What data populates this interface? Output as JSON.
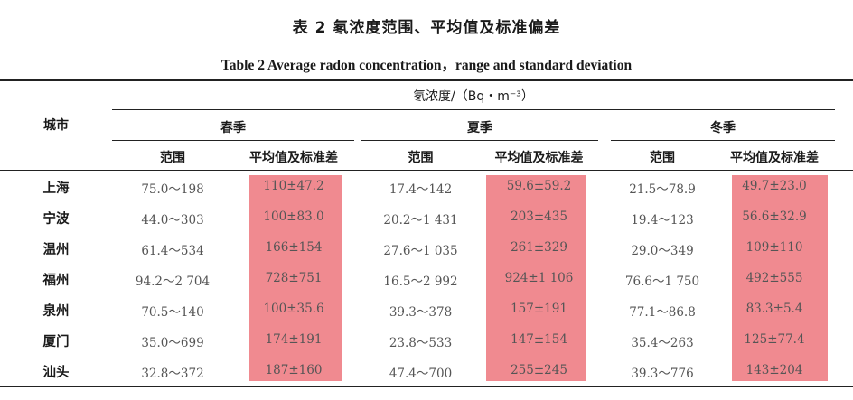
{
  "caption": {
    "zh": "表 2  氡浓度范围、平均值及标准偏差",
    "en": "Table 2    Average radon concentration，range and standard deviation"
  },
  "table": {
    "city_header": "城市",
    "group_header": "氡浓度/（Bq・m⁻³）",
    "seasons": [
      "春季",
      "夏季",
      "冬季"
    ],
    "sub_headers": [
      "范围",
      "平均值及标准差"
    ],
    "highlight_color": "#f08a90",
    "rows": [
      {
        "city": "上海",
        "cells": [
          "75.0～198",
          "110±47.2",
          "17.4～142",
          "59.6±59.2",
          "21.5～78.9",
          "49.7±23.0"
        ]
      },
      {
        "city": "宁波",
        "cells": [
          "44.0～303",
          "100±83.0",
          "20.2～1 431",
          "203±435",
          "19.4～123",
          "56.6±32.9"
        ]
      },
      {
        "city": "温州",
        "cells": [
          "61.4～534",
          "166±154",
          "27.6～1 035",
          "261±329",
          "29.0～349",
          "109±110"
        ]
      },
      {
        "city": "福州",
        "cells": [
          "94.2～2 704",
          "728±751",
          "16.5～2 992",
          "924±1 106",
          "76.6～1 750",
          "492±555"
        ]
      },
      {
        "city": "泉州",
        "cells": [
          "70.5～140",
          "100±35.6",
          "39.3～378",
          "157±191",
          "77.1～86.8",
          "83.3±5.4"
        ]
      },
      {
        "city": "厦门",
        "cells": [
          "35.0～699",
          "174±191",
          "23.8～533",
          "147±154",
          "35.4～263",
          "125±77.4"
        ]
      },
      {
        "city": "汕头",
        "cells": [
          "32.8～372",
          "187±160",
          "47.4～700",
          "255±245",
          "39.3～776",
          "143±204"
        ]
      }
    ]
  }
}
